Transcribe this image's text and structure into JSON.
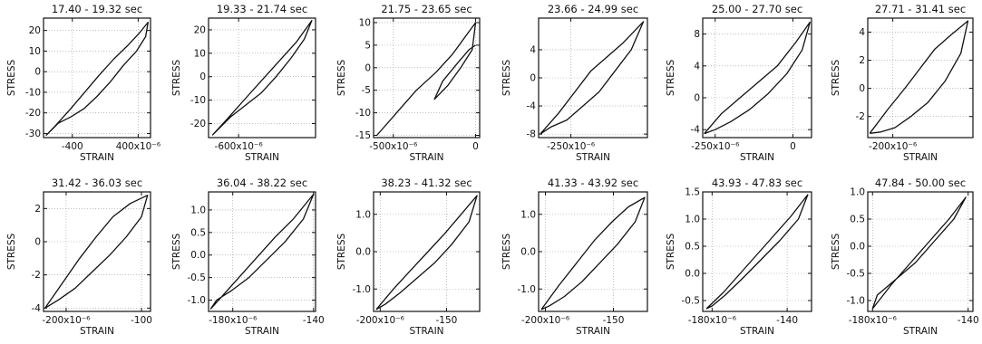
{
  "chart_data": [
    {
      "type": "line",
      "title": "17.40 - 19.32 sec",
      "xlabel": "STRAIN",
      "ylabel": "STRESS",
      "xlim": [
        -750,
        550
      ],
      "ylim": [
        -32,
        26
      ],
      "xticks": [
        {
          "v": -400,
          "label": "-400"
        },
        {
          "v": 400,
          "label": "400x10⁻⁶"
        }
      ],
      "yticks": [
        {
          "v": 20,
          "label": "20"
        },
        {
          "v": 10,
          "label": "10"
        },
        {
          "v": 0,
          "label": "0"
        },
        {
          "v": -10,
          "label": "-10"
        },
        {
          "v": -20,
          "label": "-20"
        },
        {
          "v": -30,
          "label": "-30"
        }
      ],
      "series": [
        {
          "x": [
            -720,
            -600,
            -420,
            -250,
            -80,
            100,
            280,
            420,
            520,
            490,
            380,
            220,
            60,
            -100,
            -260,
            -420,
            -570,
            -720
          ],
          "y": [
            -31,
            -26,
            -18,
            -10,
            -2,
            6,
            13,
            19,
            24,
            17,
            10,
            3,
            -5,
            -12,
            -18,
            -22,
            -25,
            -31
          ]
        }
      ]
    },
    {
      "type": "line",
      "title": "19.33 - 21.74 sec",
      "xlabel": "STRAIN",
      "ylabel": "STRESS",
      "xlim": [
        -760,
        -190
      ],
      "ylim": [
        -26,
        25
      ],
      "xticks": [
        {
          "v": -600,
          "label": "-600x10⁻⁶"
        }
      ],
      "yticks": [
        {
          "v": 20,
          "label": "20"
        },
        {
          "v": 10,
          "label": "10"
        },
        {
          "v": 0,
          "label": "0"
        },
        {
          "v": -10,
          "label": "-10"
        },
        {
          "v": -20,
          "label": "-20"
        }
      ],
      "series": [
        {
          "x": [
            -740,
            -660,
            -560,
            -470,
            -380,
            -290,
            -210,
            -250,
            -320,
            -400,
            -480,
            -560,
            -640,
            -740
          ],
          "y": [
            -25,
            -18,
            -9,
            -1,
            7,
            15,
            24,
            16,
            8,
            0,
            -7,
            -12,
            -17,
            -25
          ]
        }
      ]
    },
    {
      "type": "line",
      "title": "21.75 - 23.65 sec",
      "xlabel": "STRAIN",
      "ylabel": "STRESS",
      "xlim": [
        -620,
        25
      ],
      "ylim": [
        -15.5,
        11
      ],
      "xticks": [
        {
          "v": -500,
          "label": "-500x10⁻⁶"
        },
        {
          "v": 0,
          "label": "0"
        }
      ],
      "yticks": [
        {
          "v": 10,
          "label": "10"
        },
        {
          "v": 5,
          "label": "5"
        },
        {
          "v": 0,
          "label": "0"
        },
        {
          "v": -5,
          "label": "-5"
        },
        {
          "v": -10,
          "label": "-10"
        },
        {
          "v": -15,
          "label": "-15"
        }
      ],
      "series": [
        {
          "x": [
            -600,
            -480,
            -360,
            -240,
            -140,
            -60,
            0,
            -20,
            -90,
            -170,
            -250,
            -200,
            -110,
            -40,
            0
          ],
          "y": [
            -15,
            -10,
            -5,
            -1,
            3,
            7,
            10,
            4,
            0,
            -4,
            -7,
            -3,
            1,
            4,
            5
          ]
        }
      ]
    },
    {
      "type": "line",
      "title": "23.66 - 24.99 sec",
      "xlabel": "STRAIN",
      "ylabel": "STRESS",
      "xlim": [
        -290,
        -155
      ],
      "ylim": [
        -8.5,
        8.5
      ],
      "xticks": [
        {
          "v": -250,
          "label": "-250x10⁻⁶"
        }
      ],
      "yticks": [
        {
          "v": 4,
          "label": "4"
        },
        {
          "v": 0,
          "label": "0"
        },
        {
          "v": -4,
          "label": "-4"
        },
        {
          "v": -8,
          "label": "-8"
        }
      ],
      "series": [
        {
          "x": [
            -288,
            -265,
            -245,
            -225,
            -205,
            -185,
            -160,
            -175,
            -195,
            -215,
            -235,
            -255,
            -275,
            -288
          ],
          "y": [
            -8,
            -5,
            -2,
            1,
            3,
            5,
            8,
            4,
            1,
            -2,
            -4,
            -6,
            -7,
            -8
          ]
        }
      ]
    },
    {
      "type": "line",
      "title": "25.00 - 27.70 sec",
      "xlabel": "STRAIN",
      "ylabel": "STRESS",
      "xlim": [
        -290,
        60
      ],
      "ylim": [
        -5,
        10
      ],
      "xticks": [
        {
          "v": -250,
          "label": "-250x10⁻⁶"
        },
        {
          "v": 0,
          "label": "0"
        }
      ],
      "yticks": [
        {
          "v": 8,
          "label": "8"
        },
        {
          "v": 4,
          "label": "4"
        },
        {
          "v": 0,
          "label": "0"
        },
        {
          "v": -4,
          "label": "-4"
        }
      ],
      "series": [
        {
          "x": [
            -285,
            -230,
            -170,
            -110,
            -50,
            10,
            55,
            30,
            -20,
            -80,
            -140,
            -200,
            -250,
            -285
          ],
          "y": [
            -4.5,
            -2,
            0,
            2,
            4,
            7,
            9.5,
            6,
            3,
            0.5,
            -1.5,
            -3,
            -4,
            -4.5
          ]
        }
      ]
    },
    {
      "type": "line",
      "title": "27.71 - 31.41 sec",
      "xlabel": "STRAIN",
      "ylabel": "STRESS",
      "xlim": [
        -225,
        -120
      ],
      "ylim": [
        -3.5,
        5
      ],
      "xticks": [
        {
          "v": -200,
          "label": "-200x10⁻⁶"
        }
      ],
      "yticks": [
        {
          "v": 4,
          "label": "4"
        },
        {
          "v": 2,
          "label": "2"
        },
        {
          "v": 0,
          "label": "0"
        },
        {
          "v": -2,
          "label": "-2"
        }
      ],
      "series": [
        {
          "x": [
            -223,
            -205,
            -188,
            -172,
            -158,
            -142,
            -125,
            -132,
            -148,
            -165,
            -182,
            -198,
            -212,
            -223
          ],
          "y": [
            -3.2,
            -1.5,
            0,
            1.5,
            2.8,
            3.8,
            4.8,
            2.5,
            0.5,
            -1,
            -2,
            -2.8,
            -3.1,
            -3.2
          ]
        }
      ]
    },
    {
      "type": "line",
      "title": "31.42 - 36.03 sec",
      "xlabel": "STRAIN",
      "ylabel": "STRESS",
      "xlim": [
        -230,
        -88
      ],
      "ylim": [
        -4.2,
        3
      ],
      "xticks": [
        {
          "v": -200,
          "label": "-200x10⁻⁶"
        },
        {
          "v": -100,
          "label": "-100"
        }
      ],
      "yticks": [
        {
          "v": 2,
          "label": "2"
        },
        {
          "v": 0,
          "label": "0"
        },
        {
          "v": -2,
          "label": "-2"
        },
        {
          "v": -4,
          "label": "-4"
        }
      ],
      "series": [
        {
          "x": [
            -228,
            -205,
            -182,
            -160,
            -138,
            -115,
            -92,
            -100,
            -120,
            -142,
            -165,
            -188,
            -210,
            -228
          ],
          "y": [
            -4,
            -2.5,
            -1,
            0.3,
            1.5,
            2.3,
            2.8,
            1.5,
            0.3,
            -0.8,
            -1.8,
            -2.8,
            -3.5,
            -4
          ]
        }
      ]
    },
    {
      "type": "line",
      "title": "36.04 - 38.22 sec",
      "xlabel": "STRAIN",
      "ylabel": "STRESS",
      "xlim": [
        -192,
        -139
      ],
      "ylim": [
        -1.25,
        1.4
      ],
      "xticks": [
        {
          "v": -180,
          "label": "-180x10⁻⁶"
        },
        {
          "v": -140,
          "label": "-140"
        }
      ],
      "yticks": [
        {
          "v": 1.0,
          "label": "1.0"
        },
        {
          "v": 0.5,
          "label": "0.5"
        },
        {
          "v": 0.0,
          "label": "0.0"
        },
        {
          "v": -0.5,
          "label": "-0.5"
        },
        {
          "v": -1.0,
          "label": "-1.0"
        }
      ],
      "series": [
        {
          "x": [
            -191,
            -183,
            -175,
            -167,
            -159,
            -150,
            -140,
            -145,
            -154,
            -163,
            -172,
            -181,
            -188,
            -191
          ],
          "y": [
            -1.2,
            -0.8,
            -0.4,
            0,
            0.4,
            0.8,
            1.35,
            0.8,
            0.3,
            -0.1,
            -0.5,
            -0.8,
            -1.0,
            -1.2
          ]
        }
      ]
    },
    {
      "type": "line",
      "title": "38.23 - 41.32 sec",
      "xlabel": "STRAIN",
      "ylabel": "STRESS",
      "xlim": [
        -205,
        -125
      ],
      "ylim": [
        -1.6,
        1.6
      ],
      "xticks": [
        {
          "v": -200,
          "label": "-200x10⁻⁶"
        },
        {
          "v": -150,
          "label": "-150"
        }
      ],
      "yticks": [
        {
          "v": 1.0,
          "label": "1.0"
        },
        {
          "v": 0.0,
          "label": "0.0"
        },
        {
          "v": -1.0,
          "label": "-1.0"
        }
      ],
      "series": [
        {
          "x": [
            -203,
            -190,
            -177,
            -164,
            -151,
            -139,
            -127,
            -133,
            -146,
            -159,
            -172,
            -185,
            -196,
            -203
          ],
          "y": [
            -1.55,
            -1,
            -0.5,
            0,
            0.5,
            1,
            1.5,
            0.8,
            0.2,
            -0.3,
            -0.7,
            -1.1,
            -1.4,
            -1.55
          ]
        }
      ]
    },
    {
      "type": "line",
      "title": "41.33 - 43.92 sec",
      "xlabel": "STRAIN",
      "ylabel": "STRESS",
      "xlim": [
        -205,
        -125
      ],
      "ylim": [
        -1.6,
        1.6
      ],
      "xticks": [
        {
          "v": -200,
          "label": "-200x10⁻⁶"
        },
        {
          "v": -150,
          "label": "-150"
        }
      ],
      "yticks": [
        {
          "v": 1.0,
          "label": "1.0"
        },
        {
          "v": 0.0,
          "label": "0.0"
        },
        {
          "v": -1.0,
          "label": "-1.0"
        }
      ],
      "series": [
        {
          "x": [
            -203,
            -190,
            -177,
            -164,
            -151,
            -139,
            -127,
            -134,
            -147,
            -160,
            -173,
            -186,
            -197,
            -203
          ],
          "y": [
            -1.55,
            -0.9,
            -0.3,
            0.3,
            0.8,
            1.2,
            1.45,
            0.8,
            0.2,
            -0.3,
            -0.8,
            -1.2,
            -1.45,
            -1.55
          ]
        }
      ]
    },
    {
      "type": "line",
      "title": "43.93 - 47.83 sec",
      "xlabel": "STRAIN",
      "ylabel": "STRESS",
      "xlim": [
        -185,
        -127
      ],
      "ylim": [
        -0.7,
        1.5
      ],
      "xticks": [
        {
          "v": -180,
          "label": "-180x10⁻⁶"
        },
        {
          "v": -140,
          "label": "-140"
        }
      ],
      "yticks": [
        {
          "v": 1.5,
          "label": "1.5"
        },
        {
          "v": 1.0,
          "label": "1.0"
        },
        {
          "v": 0.5,
          "label": "0.5"
        },
        {
          "v": 0.0,
          "label": "0.0"
        },
        {
          "v": -0.5,
          "label": "-0.5"
        }
      ],
      "series": [
        {
          "x": [
            -183,
            -174,
            -165,
            -156,
            -147,
            -138,
            -129,
            -134,
            -144,
            -154,
            -164,
            -173,
            -180,
            -183
          ],
          "y": [
            -0.65,
            -0.35,
            0,
            0.35,
            0.7,
            1.05,
            1.45,
            1.0,
            0.6,
            0.25,
            -0.1,
            -0.4,
            -0.6,
            -0.65
          ]
        }
      ]
    },
    {
      "type": "line",
      "title": "47.84 - 50.00 sec",
      "xlabel": "STRAIN",
      "ylabel": "STRESS",
      "xlim": [
        -182,
        -138
      ],
      "ylim": [
        -1.2,
        1.0
      ],
      "xticks": [
        {
          "v": -180,
          "label": "-180x10⁻⁶"
        },
        {
          "v": -140,
          "label": "-140"
        }
      ],
      "yticks": [
        {
          "v": 1.0,
          "label": "1.0"
        },
        {
          "v": 0.5,
          "label": "0.5"
        },
        {
          "v": 0.0,
          "label": "0.0"
        },
        {
          "v": -0.5,
          "label": "-0.5"
        },
        {
          "v": -1.0,
          "label": "-1.0"
        }
      ],
      "series": [
        {
          "x": [
            -180,
            -172,
            -164,
            -156,
            -148,
            -141,
            -146,
            -154,
            -162,
            -170,
            -178,
            -180
          ],
          "y": [
            -1.15,
            -0.7,
            -0.3,
            0.1,
            0.5,
            0.9,
            0.5,
            0.1,
            -0.3,
            -0.6,
            -0.9,
            -1.15
          ]
        }
      ]
    }
  ]
}
